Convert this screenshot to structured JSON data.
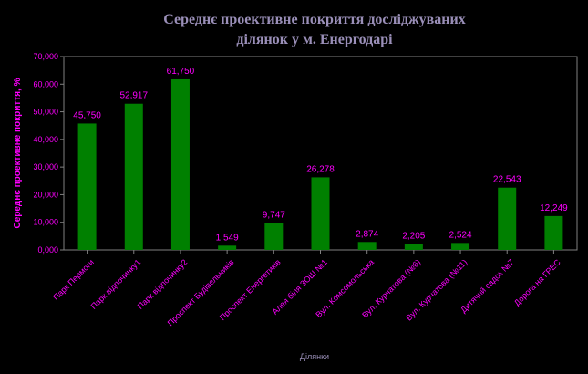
{
  "chart_data": {
    "type": "bar",
    "title_line1": "Середнє проективне покриття досліджуваних",
    "title_line2": "ділянок у м. Енергодарі",
    "ylabel": "Середнє проективне покриття, %",
    "xlabel": "Ділянки",
    "ylim": [
      0,
      70
    ],
    "yticks": [
      "0,000",
      "10,000",
      "20,000",
      "30,000",
      "40,000",
      "50,000",
      "60,000",
      "70,000"
    ],
    "categories": [
      "Парк Пермоги",
      "Парк відпочинку1",
      "Парк відпочинку2",
      "Проспект Будівельників",
      "Проспект Енергетиків",
      "Алея біля ЗОШ №1",
      "Вул. Комсомольська",
      "Вул. Курчатова (№6)",
      "Вул. Курчатова (№11)",
      "Дитячий садок №7",
      "Дорога на ГРЕС"
    ],
    "values": [
      45.75,
      52.917,
      61.75,
      1.549,
      9.747,
      26.278,
      2.874,
      2.205,
      2.524,
      22.543,
      12.249
    ],
    "value_labels": [
      "45,750",
      "52,917",
      "61,750",
      "1,549",
      "9,747",
      "26,278",
      "2,874",
      "2,205",
      "2,524",
      "22,543",
      "12,249"
    ],
    "bar_color": "#008000",
    "grid": false,
    "legend": "none"
  }
}
